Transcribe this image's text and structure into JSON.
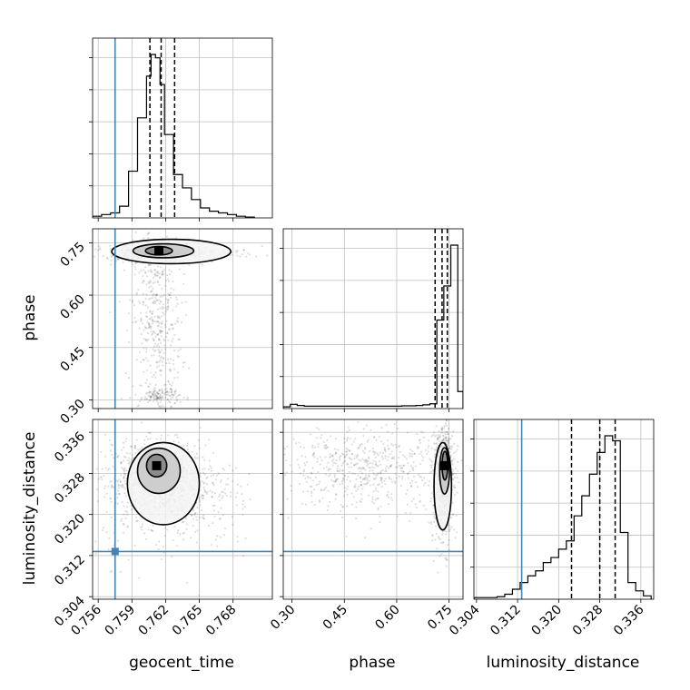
{
  "chart_data": {
    "type": "corner",
    "parameters": [
      {
        "name": "geocent_time",
        "range": [
          0.7555,
          0.7715
        ],
        "ticks": [
          0.756,
          0.759,
          0.762,
          0.765,
          0.768
        ],
        "tick_labels": [
          "0.756",
          "0.759",
          "0.762",
          "0.765",
          "0.768"
        ],
        "truth": 0.7575,
        "quantiles": [
          0.7606,
          0.7616,
          0.7628
        ],
        "hist_edges": [
          0.7555,
          0.7563,
          0.7571,
          0.7579,
          0.7587,
          0.7595,
          0.7603,
          0.7607,
          0.7611,
          0.7615,
          0.7619,
          0.7627,
          0.7635,
          0.7643,
          0.7651,
          0.7659,
          0.7667,
          0.7675,
          0.7683,
          0.7691,
          0.7699
        ],
        "hist_counts": [
          0.01,
          0.02,
          0.03,
          0.07,
          0.28,
          0.6,
          0.85,
          0.98,
          0.96,
          0.8,
          0.5,
          0.26,
          0.18,
          0.11,
          0.06,
          0.04,
          0.03,
          0.02,
          0.01,
          0.005
        ]
      },
      {
        "name": "phase",
        "range": [
          0.275,
          0.79
        ],
        "ticks": [
          0.3,
          0.45,
          0.6,
          0.75
        ],
        "tick_labels": [
          "0.30",
          "0.45",
          "0.60",
          "0.75"
        ],
        "quantiles": [
          0.71,
          0.73,
          0.745
        ],
        "hist_edges": [
          0.275,
          0.295,
          0.315,
          0.335,
          0.355,
          0.375,
          0.395,
          0.415,
          0.435,
          0.455,
          0.475,
          0.495,
          0.515,
          0.535,
          0.555,
          0.575,
          0.595,
          0.615,
          0.635,
          0.655,
          0.675,
          0.695,
          0.715,
          0.735,
          0.755,
          0.775,
          0.79
        ],
        "hist_counts": [
          0.01,
          0.025,
          0.018,
          0.014,
          0.014,
          0.014,
          0.014,
          0.014,
          0.014,
          0.014,
          0.014,
          0.014,
          0.014,
          0.014,
          0.014,
          0.014,
          0.014,
          0.016,
          0.016,
          0.018,
          0.022,
          0.028,
          0.52,
          0.72,
          0.96,
          0.1
        ]
      },
      {
        "name": "luminosity_distance",
        "range": [
          0.3035,
          0.3385
        ],
        "ticks": [
          0.304,
          0.312,
          0.32,
          0.328,
          0.336
        ],
        "tick_labels": [
          "0.304",
          "0.312",
          "0.320",
          "0.328",
          "0.336"
        ],
        "truth": 0.3128,
        "quantiles": [
          0.3225,
          0.328,
          0.331
        ],
        "hist_edges": [
          0.3035,
          0.305,
          0.3065,
          0.308,
          0.3095,
          0.311,
          0.3125,
          0.314,
          0.3155,
          0.317,
          0.3185,
          0.32,
          0.3215,
          0.323,
          0.3245,
          0.326,
          0.3275,
          0.329,
          0.3305,
          0.332,
          0.3335,
          0.335,
          0.3365,
          0.338
        ],
        "hist_counts": [
          0.01,
          0.01,
          0.01,
          0.015,
          0.03,
          0.06,
          0.1,
          0.14,
          0.17,
          0.22,
          0.25,
          0.3,
          0.35,
          0.5,
          0.62,
          0.75,
          0.88,
          0.98,
          0.95,
          0.4,
          0.1,
          0.05,
          0.02
        ]
      }
    ],
    "pairs": [
      {
        "x": "geocent_time",
        "y": "phase",
        "clusters": [
          {
            "cx": 0.7612,
            "cy": 0.725,
            "sx": 0.0018,
            "sy": 0.015,
            "n": 500
          },
          {
            "cx": 0.7625,
            "cy": 0.72,
            "sx": 0.004,
            "sy": 0.01,
            "n": 200
          },
          {
            "cx": 0.7612,
            "cy": 0.53,
            "sx": 0.0011,
            "sy": 0.13,
            "n": 450
          },
          {
            "cx": 0.7615,
            "cy": 0.31,
            "sx": 0.0009,
            "sy": 0.012,
            "n": 120
          }
        ],
        "contours": [
          {
            "cx": 0.7614,
            "cy": 0.727,
            "rx": 0.0012,
            "ry": 0.012
          },
          {
            "cx": 0.7618,
            "cy": 0.727,
            "rx": 0.0027,
            "ry": 0.02
          },
          {
            "cx": 0.7625,
            "cy": 0.725,
            "rx": 0.0053,
            "ry": 0.035
          }
        ],
        "truth_x": 0.7575
      },
      {
        "x": "geocent_time",
        "y": "luminosity_distance",
        "clusters": [
          {
            "cx": 0.7612,
            "cy": 0.329,
            "sx": 0.0012,
            "sy": 0.0022,
            "n": 600
          },
          {
            "cx": 0.7616,
            "cy": 0.326,
            "sx": 0.0022,
            "sy": 0.004,
            "n": 700
          },
          {
            "cx": 0.7625,
            "cy": 0.323,
            "sx": 0.004,
            "sy": 0.006,
            "n": 300
          }
        ],
        "contours": [
          {
            "cx": 0.7612,
            "cy": 0.3295,
            "rx": 0.0009,
            "ry": 0.0022
          },
          {
            "cx": 0.7614,
            "cy": 0.3285,
            "rx": 0.0019,
            "ry": 0.0044
          },
          {
            "cx": 0.7618,
            "cy": 0.326,
            "rx": 0.0032,
            "ry": 0.008
          }
        ],
        "truth_x": 0.7575,
        "truth_y": 0.3128
      },
      {
        "x": "phase",
        "y": "luminosity_distance",
        "clusters": [
          {
            "cx": 0.735,
            "cy": 0.329,
            "sx": 0.01,
            "sy": 0.003,
            "n": 700
          },
          {
            "cx": 0.73,
            "cy": 0.325,
            "sx": 0.018,
            "sy": 0.006,
            "n": 300
          },
          {
            "cx": 0.5,
            "cy": 0.329,
            "sx": 0.13,
            "sy": 0.004,
            "n": 600
          }
        ],
        "contours": [
          {
            "cx": 0.738,
            "cy": 0.3295,
            "rx": 0.008,
            "ry": 0.0028
          },
          {
            "cx": 0.737,
            "cy": 0.3285,
            "rx": 0.014,
            "ry": 0.0045
          },
          {
            "cx": 0.732,
            "cy": 0.3255,
            "rx": 0.025,
            "ry": 0.0085
          }
        ],
        "truth_y": 0.3128
      }
    ],
    "truth_color": "#4682b4",
    "grid": true
  }
}
